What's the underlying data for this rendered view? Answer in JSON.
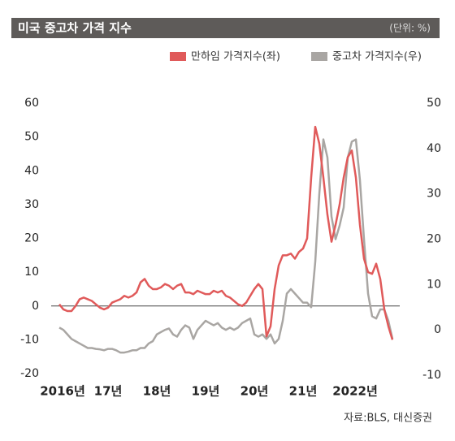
{
  "chart_data": {
    "type": "line",
    "title": "미국 중고차 가격 지수",
    "unit": "(단위: %)",
    "source": "자료:BLS, 대신증권",
    "x": [
      0,
      1,
      2,
      3,
      4,
      5,
      6,
      7,
      8,
      9,
      10,
      11,
      12,
      13,
      14,
      15,
      16,
      17,
      18,
      19,
      20,
      21,
      22,
      23,
      24,
      25,
      26,
      27,
      28,
      29,
      30,
      31,
      32,
      33,
      34,
      35,
      36,
      37,
      38,
      39,
      40,
      41,
      42,
      43,
      44,
      45,
      46,
      47,
      48,
      49,
      50,
      51,
      52,
      53,
      54,
      55,
      56,
      57,
      58,
      59,
      60,
      61,
      62,
      63,
      64,
      65,
      66,
      67,
      68,
      69,
      70,
      71,
      72,
      73,
      74,
      75,
      76,
      77,
      78,
      79,
      80,
      81,
      82
    ],
    "xlim": [
      0,
      82
    ],
    "xticks": [
      {
        "value": 0,
        "label": "2016년"
      },
      {
        "value": 12,
        "label": "17년"
      },
      {
        "value": 24,
        "label": "18년"
      },
      {
        "value": 36,
        "label": "19년"
      },
      {
        "value": 48,
        "label": "20년"
      },
      {
        "value": 60,
        "label": "21년"
      },
      {
        "value": 72,
        "label": "2022년"
      }
    ],
    "ylim": [
      -20,
      60
    ],
    "yticks": [
      -20,
      -10,
      0,
      10,
      20,
      30,
      40,
      50,
      60
    ],
    "y2lim": [
      -10,
      50
    ],
    "y2ticks": [
      -10,
      0,
      10,
      20,
      30,
      40,
      50
    ],
    "series": [
      {
        "name": "만하임 가격지수(좌)",
        "color": "#e05a5a",
        "values": [
          0.5,
          -1,
          -1.5,
          -1.5,
          0,
          2,
          2.5,
          2,
          1.5,
          0.5,
          -0.5,
          -1,
          -0.5,
          1,
          1.5,
          2,
          3,
          2.5,
          3,
          4,
          7,
          8,
          6,
          5,
          5,
          5.5,
          6.5,
          6,
          5,
          6,
          6.5,
          4,
          4,
          3.5,
          4.5,
          4,
          3.5,
          3.5,
          4.5,
          4,
          4.5,
          3,
          2.5,
          1.5,
          0.5,
          0,
          1,
          3,
          5,
          6.5,
          5,
          -9,
          -6,
          5,
          12,
          15,
          15,
          15.5,
          14,
          16,
          17,
          20,
          38,
          53,
          48,
          38,
          27,
          19,
          24,
          30,
          38,
          44,
          46,
          38,
          24,
          14,
          10,
          9.5,
          12.5,
          8,
          -1,
          -6,
          -10
        ]
      },
      {
        "name": "중고차 가격지수(우)",
        "color": "#a9a6a3",
        "axis": "y2",
        "values": [
          0.5,
          0,
          -1,
          -2,
          -2.5,
          -3,
          -3.5,
          -4,
          -4,
          -4.2,
          -4.3,
          -4.5,
          -4.2,
          -4.2,
          -4.5,
          -5,
          -5,
          -4.8,
          -4.5,
          -4.5,
          -4,
          -4,
          -3,
          -2.5,
          -1,
          -0.5,
          0,
          0.3,
          -1,
          -1.5,
          0,
          1,
          0.5,
          -2,
          0,
          1,
          2,
          1.5,
          1,
          1.5,
          0.5,
          0,
          0.5,
          0,
          0.5,
          1.5,
          2,
          2.5,
          -1,
          -1.5,
          -1,
          -2,
          -1,
          -3,
          -2,
          2,
          8,
          9,
          8,
          7,
          6,
          6,
          5,
          15,
          30,
          42,
          38,
          25,
          20,
          23,
          27,
          38,
          41.5,
          42,
          33,
          20,
          8,
          3,
          2.5,
          4.5,
          4.5,
          2,
          -2
        ]
      }
    ]
  }
}
